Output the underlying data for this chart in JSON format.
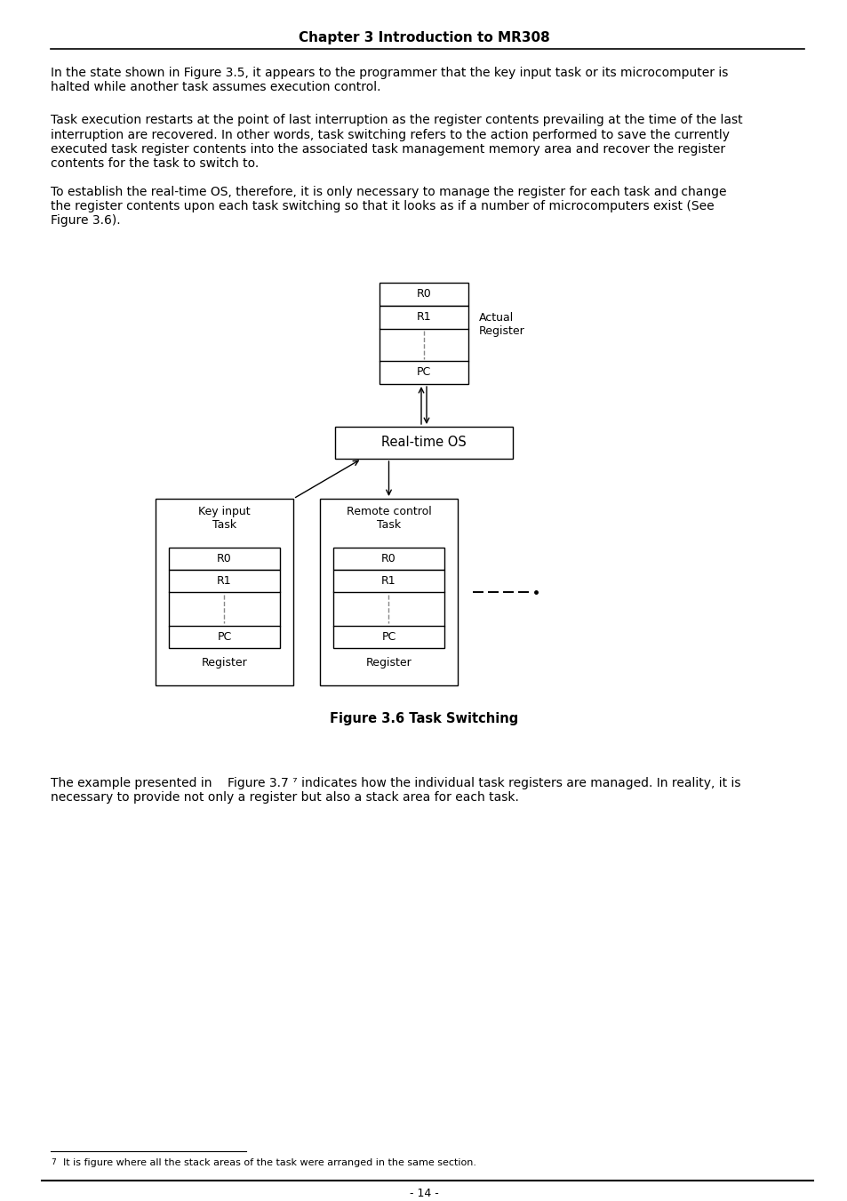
{
  "page_title": "Chapter 3 Introduction to MR308",
  "background_color": "#ffffff",
  "text_color": "#000000",
  "para1": "In the state shown in Figure 3.5, it appears to the programmer that the key input task or its microcomputer is\nhalted while another task assumes execution control.",
  "para2": "Task execution restarts at the point of last interruption as the register contents prevailing at the time of the last\ninterruption are recovered. In other words, task switching refers to the action performed to save the currently\nexecuted task register contents into the associated task management memory area and recover the register\ncontents for the task to switch to.",
  "para3": "To establish the real-time OS, therefore, it is only necessary to manage the register for each task and change\nthe register contents upon each task switching so that it looks as if a number of microcomputers exist (See\nFigure 3.6).",
  "figure_caption": "Figure 3.6 Task Switching",
  "bottom_text": "The example presented in    Figure 3.7 ⁷ indicates how the individual task registers are managed. In reality, it is\nnecessary to provide not only a register but also a stack area for each task.",
  "footnote_num": "7",
  "footnote_text": "  It is figure where all the stack areas of the task were arranged in the same section.",
  "page_number": "- 14 -",
  "text_fontsize": 10.0,
  "title_fontsize": 11.0,
  "diagram_fontsize": 9.0,
  "caption_fontsize": 10.5
}
